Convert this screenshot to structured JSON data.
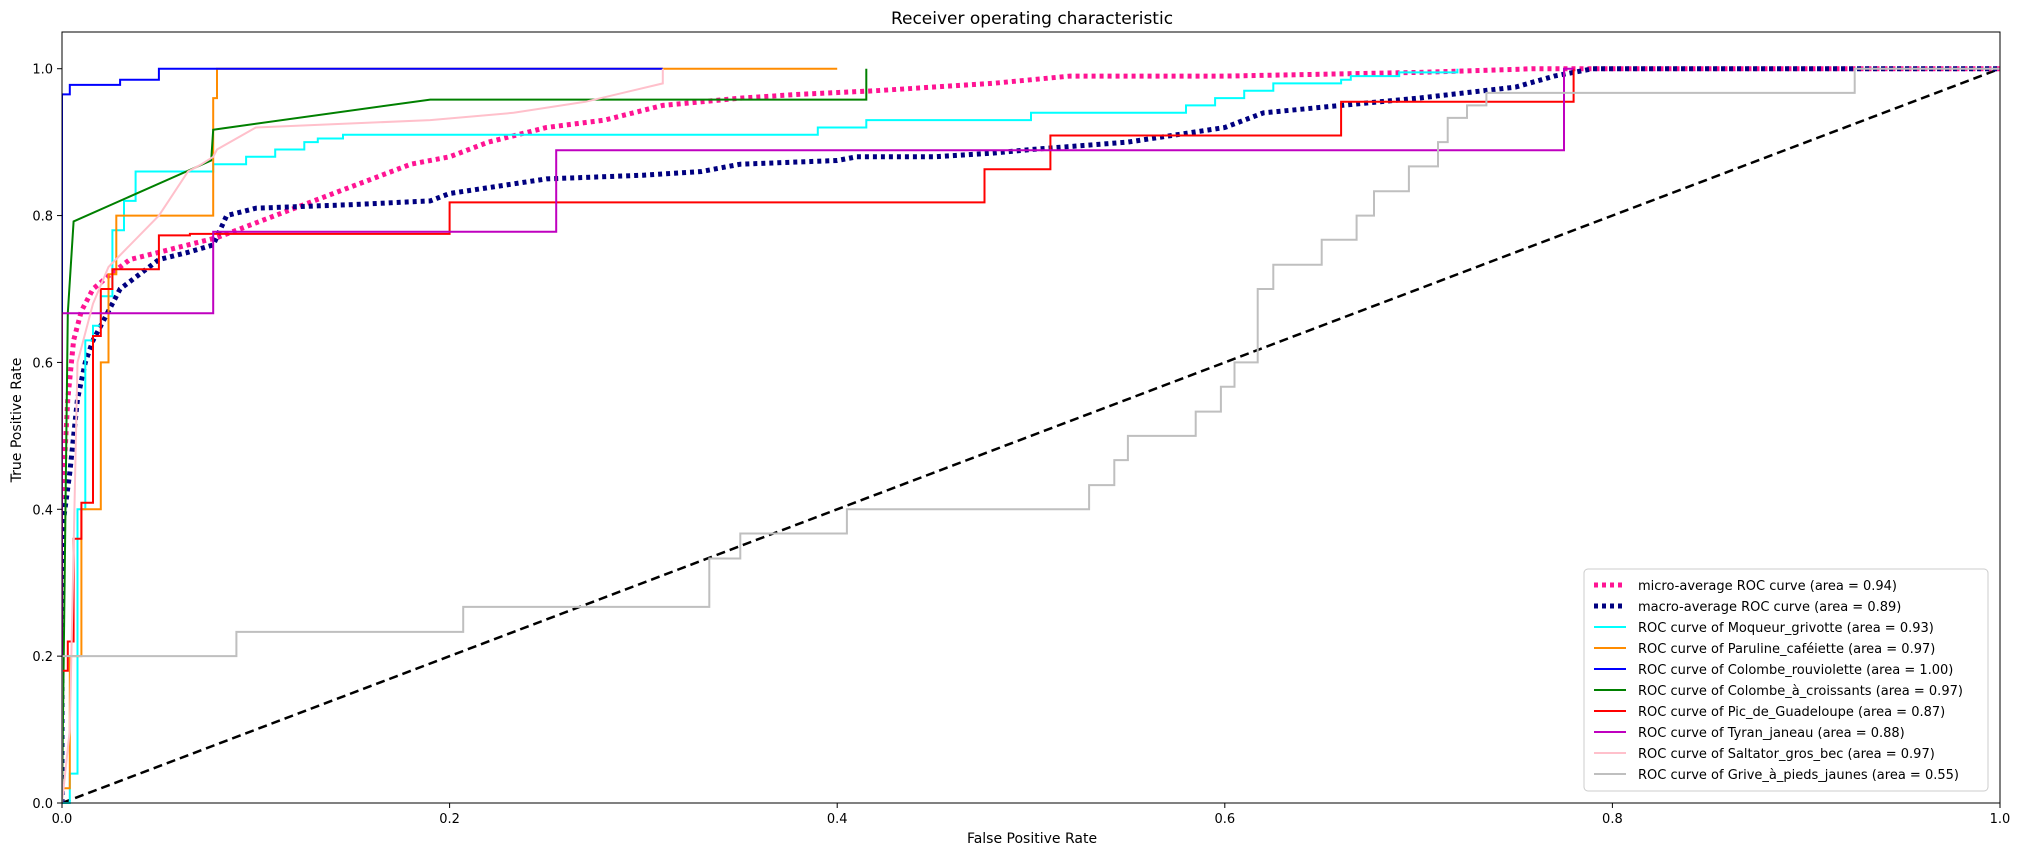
{
  "chart_data": {
    "type": "line",
    "title": "Receiver operating characteristic",
    "xlabel": "False Positive Rate",
    "ylabel": "True Positive Rate",
    "xlim": [
      0.0,
      1.0
    ],
    "ylim": [
      0.0,
      1.05
    ],
    "xticks": [
      "0.0",
      "0.2",
      "0.4",
      "0.6",
      "0.8",
      "1.0"
    ],
    "yticks": [
      "0.0",
      "0.2",
      "0.4",
      "0.6",
      "0.8",
      "1.0"
    ],
    "grid": false,
    "legend_loc": "lower right",
    "series": [
      {
        "name": "micro-average ROC curve (area = 0.94)",
        "color": "#ff1493",
        "style": "dotted",
        "width": 5,
        "x": [
          0,
          0.0,
          0.003,
          0.006,
          0.01,
          0.016,
          0.025,
          0.035,
          0.05,
          0.065,
          0.08,
          0.09,
          0.1,
          0.12,
          0.14,
          0.16,
          0.18,
          0.2,
          0.22,
          0.25,
          0.28,
          0.31,
          0.35,
          0.38,
          0.42,
          0.48,
          0.52,
          0.6,
          0.7,
          0.76,
          0.8,
          0.9,
          1.0
        ],
        "y": [
          0,
          0.4,
          0.55,
          0.63,
          0.67,
          0.7,
          0.72,
          0.74,
          0.75,
          0.76,
          0.77,
          0.78,
          0.79,
          0.81,
          0.83,
          0.85,
          0.87,
          0.88,
          0.9,
          0.92,
          0.93,
          0.95,
          0.96,
          0.965,
          0.97,
          0.98,
          0.99,
          0.99,
          0.995,
          1.0,
          1.0,
          1.0,
          1.0
        ]
      },
      {
        "name": "macro-average ROC curve (area = 0.89)",
        "color": "#000080",
        "style": "dotted",
        "width": 5,
        "x": [
          0,
          0.0,
          0.004,
          0.008,
          0.012,
          0.016,
          0.02,
          0.03,
          0.05,
          0.065,
          0.078,
          0.085,
          0.1,
          0.15,
          0.19,
          0.2,
          0.25,
          0.3,
          0.33,
          0.35,
          0.4,
          0.41,
          0.45,
          0.48,
          0.5,
          0.55,
          0.6,
          0.62,
          0.7,
          0.75,
          0.77,
          0.79,
          0.85,
          0.9,
          1.0
        ],
        "y": [
          0,
          0.37,
          0.45,
          0.55,
          0.6,
          0.63,
          0.65,
          0.7,
          0.74,
          0.75,
          0.76,
          0.8,
          0.81,
          0.815,
          0.82,
          0.83,
          0.85,
          0.855,
          0.86,
          0.87,
          0.875,
          0.88,
          0.88,
          0.885,
          0.89,
          0.9,
          0.92,
          0.94,
          0.96,
          0.975,
          0.99,
          1.0,
          1.0,
          1.0,
          1.0
        ]
      },
      {
        "name": "ROC curve of Moqueur_grivotte (area = 0.93)",
        "color": "#00ffff",
        "style": "solid",
        "width": 2,
        "x": [
          0,
          0.004,
          0.004,
          0.008,
          0.008,
          0.012,
          0.012,
          0.016,
          0.016,
          0.02,
          0.02,
          0.026,
          0.026,
          0.032,
          0.032,
          0.038,
          0.038,
          0.078,
          0.078,
          0.095,
          0.095,
          0.11,
          0.11,
          0.125,
          0.125,
          0.132,
          0.132,
          0.145,
          0.145,
          0.39,
          0.39,
          0.415,
          0.415,
          0.5,
          0.5,
          0.58,
          0.58,
          0.595,
          0.595,
          0.61,
          0.61,
          0.625,
          0.625,
          0.66,
          0.66,
          0.665,
          0.665,
          0.69,
          0.69,
          0.72,
          0.72
        ],
        "y": [
          0,
          0.0,
          0.04,
          0.04,
          0.4,
          0.4,
          0.63,
          0.63,
          0.65,
          0.65,
          0.69,
          0.69,
          0.78,
          0.78,
          0.82,
          0.82,
          0.86,
          0.86,
          0.87,
          0.87,
          0.88,
          0.88,
          0.89,
          0.89,
          0.9,
          0.9,
          0.905,
          0.905,
          0.91,
          0.91,
          0.92,
          0.92,
          0.93,
          0.93,
          0.94,
          0.94,
          0.95,
          0.95,
          0.96,
          0.96,
          0.97,
          0.97,
          0.98,
          0.98,
          0.985,
          0.985,
          0.99,
          0.99,
          0.995,
          0.995,
          1.0
        ]
      },
      {
        "name": "ROC curve of Paruline_caféiette (area = 0.97)",
        "color": "#ff8c00",
        "style": "solid",
        "width": 2,
        "x": [
          0,
          0.0,
          0.004,
          0.004,
          0.01,
          0.01,
          0.02,
          0.02,
          0.024,
          0.024,
          0.028,
          0.028,
          0.078,
          0.078,
          0.08,
          0.08,
          0.25,
          0.4
        ],
        "y": [
          0,
          0.02,
          0.02,
          0.2,
          0.2,
          0.4,
          0.4,
          0.6,
          0.6,
          0.72,
          0.72,
          0.8,
          0.8,
          0.96,
          0.96,
          1.0,
          1.0,
          1.0
        ]
      },
      {
        "name": "ROC curve of Colombe_rouviolette (area = 1.00)",
        "color": "#0000ff",
        "style": "solid",
        "width": 2,
        "x": [
          0,
          0.0,
          0.004,
          0.004,
          0.03,
          0.03,
          0.05,
          0.05,
          0.31
        ],
        "y": [
          0,
          0.965,
          0.965,
          0.978,
          0.978,
          0.985,
          0.985,
          1.0,
          1.0
        ]
      },
      {
        "name": "ROC curve of Colombe_à_croissants (area = 0.97)",
        "color": "#008000",
        "style": "solid",
        "width": 2,
        "x": [
          0,
          0.003,
          0.003,
          0.006,
          0.006,
          0.077,
          0.077,
          0.078,
          0.078,
          0.19,
          0.19,
          0.415,
          0.415
        ],
        "y": [
          0,
          0.667,
          0.667,
          0.792,
          0.792,
          0.875,
          0.875,
          0.917,
          0.917,
          0.958,
          0.958,
          0.958,
          1.0
        ]
      },
      {
        "name": "ROC curve of Pic_de_Guadeloupe (area = 0.87)",
        "color": "#ff0000",
        "style": "solid",
        "width": 2,
        "x": [
          0,
          0.0,
          0.003,
          0.003,
          0.006,
          0.006,
          0.01,
          0.01,
          0.016,
          0.016,
          0.02,
          0.02,
          0.026,
          0.026,
          0.05,
          0.05,
          0.066,
          0.066,
          0.2,
          0.2,
          0.476,
          0.476,
          0.51,
          0.51,
          0.66,
          0.66,
          0.78,
          0.78
        ],
        "y": [
          0,
          0.18,
          0.18,
          0.22,
          0.22,
          0.36,
          0.36,
          0.409,
          0.409,
          0.636,
          0.636,
          0.7,
          0.7,
          0.727,
          0.727,
          0.773,
          0.773,
          0.775,
          0.775,
          0.818,
          0.818,
          0.863,
          0.863,
          0.909,
          0.909,
          0.955,
          0.955,
          1.0
        ]
      },
      {
        "name": "ROC curve of Tyran_janeau (area = 0.88)",
        "color": "#bf00bf",
        "style": "solid",
        "width": 2,
        "x": [
          0,
          0.0,
          0.078,
          0.078,
          0.255,
          0.255,
          0.775,
          0.775,
          0.78
        ],
        "y": [
          0,
          0.667,
          0.667,
          0.778,
          0.778,
          0.889,
          0.889,
          1.0,
          1.0
        ]
      },
      {
        "name": "ROC curve of Saltator_gros_bec (area = 0.97)",
        "color": "#ffc0cb",
        "style": "solid",
        "width": 2,
        "x": [
          0,
          0.004,
          0.004,
          0.008,
          0.008,
          0.016,
          0.016,
          0.024,
          0.024,
          0.05,
          0.05,
          0.055,
          0.055,
          0.06,
          0.06,
          0.065,
          0.065,
          0.072,
          0.072,
          0.078,
          0.078,
          0.08,
          0.08,
          0.1,
          0.1,
          0.19,
          0.19,
          0.233,
          0.233,
          0.27,
          0.27,
          0.31,
          0.31
        ],
        "y": [
          0,
          0.1,
          0.1,
          0.6,
          0.6,
          0.68,
          0.68,
          0.73,
          0.73,
          0.8,
          0.8,
          0.82,
          0.82,
          0.84,
          0.84,
          0.86,
          0.86,
          0.87,
          0.87,
          0.88,
          0.88,
          0.89,
          0.89,
          0.92,
          0.92,
          0.93,
          0.93,
          0.94,
          0.94,
          0.955,
          0.955,
          0.98,
          1.0
        ]
      },
      {
        "name": "ROC curve of Grive_à_pieds_jaunes (area = 0.55)",
        "color": "#bfbfbf",
        "style": "solid",
        "width": 2,
        "x": [
          0,
          0.0,
          0.09,
          0.09,
          0.207,
          0.207,
          0.334,
          0.334,
          0.35,
          0.35,
          0.405,
          0.405,
          0.53,
          0.53,
          0.543,
          0.543,
          0.55,
          0.55,
          0.585,
          0.585,
          0.598,
          0.598,
          0.605,
          0.605,
          0.617,
          0.617,
          0.625,
          0.625,
          0.65,
          0.65,
          0.668,
          0.668,
          0.677,
          0.677,
          0.695,
          0.695,
          0.71,
          0.71,
          0.715,
          0.715,
          0.725,
          0.725,
          0.735,
          0.735,
          0.775,
          0.775,
          0.925,
          0.925,
          1.0
        ],
        "y": [
          0,
          0.2,
          0.2,
          0.233,
          0.233,
          0.267,
          0.267,
          0.333,
          0.333,
          0.367,
          0.367,
          0.4,
          0.4,
          0.433,
          0.433,
          0.467,
          0.467,
          0.5,
          0.5,
          0.533,
          0.533,
          0.567,
          0.567,
          0.6,
          0.6,
          0.7,
          0.7,
          0.733,
          0.733,
          0.767,
          0.767,
          0.8,
          0.8,
          0.833,
          0.833,
          0.867,
          0.867,
          0.9,
          0.9,
          0.933,
          0.933,
          0.95,
          0.95,
          0.967,
          0.967,
          0.967,
          0.967,
          1.0,
          1.0
        ]
      }
    ],
    "reference_line": {
      "x": [
        0,
        1
      ],
      "y": [
        0,
        1
      ],
      "color": "#000000",
      "style": "dashed"
    }
  }
}
